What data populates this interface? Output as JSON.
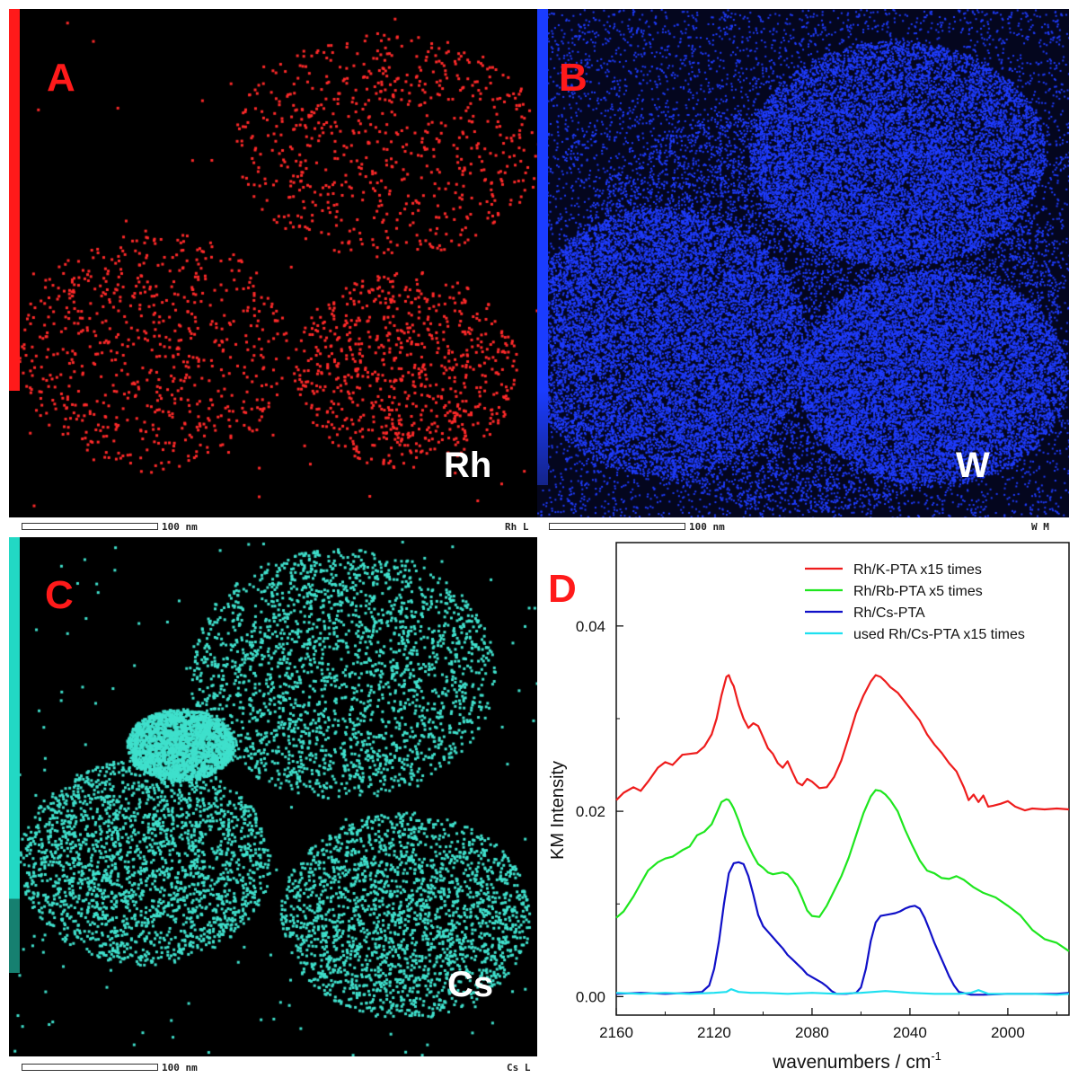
{
  "panels": {
    "a": {
      "label": "A",
      "element": "Rh",
      "scale_text": "100 nm",
      "map_name": "Rh L",
      "color": "#ff2a2a"
    },
    "b": {
      "label": "B",
      "element": "W",
      "scale_text": "100 nm",
      "map_name": "W M",
      "color": "#1f3cff"
    },
    "c": {
      "label": "C",
      "element": "Cs",
      "scale_text": "100 nm",
      "map_name": "Cs L",
      "color": "#3fe0cc"
    },
    "d": {
      "label": "D"
    }
  },
  "colors": {
    "rh_bar": "#ff1a1a",
    "w_bar": "#1a3cff",
    "cs_bar": "#22d8c4",
    "label_red": "#ff1a1a"
  },
  "chart_data": {
    "type": "line",
    "xlabel": "wavenumbers / cm",
    "xlabel_sup": "-1",
    "ylabel": "KM Intensity",
    "xlim": [
      2160,
      1975
    ],
    "ylim": [
      -0.002,
      0.049
    ],
    "xticks": [
      "2160",
      "2120",
      "2080",
      "2040",
      "2000"
    ],
    "yticks": [
      "0.00",
      "0.02",
      "0.04"
    ],
    "legend_position": "top-right",
    "series": [
      {
        "name": "Rh/K-PTA x15 times",
        "color": "#ee1c1c",
        "x": [
          2160,
          2157,
          2153,
          2150,
          2147,
          2143,
          2140,
          2137,
          2133,
          2130,
          2127,
          2124,
          2121,
          2119,
          2117,
          2115,
          2114,
          2113,
          2112,
          2110,
          2108,
          2106,
          2104,
          2102,
          2100,
          2098,
          2096,
          2094,
          2092,
          2090,
          2088,
          2086,
          2084,
          2082,
          2080,
          2077,
          2074,
          2071,
          2068,
          2065,
          2062,
          2059,
          2056,
          2054,
          2052,
          2050,
          2048,
          2045,
          2042,
          2039,
          2036,
          2033,
          2030,
          2027,
          2024,
          2021,
          2018,
          2016,
          2014,
          2012,
          2010,
          2008,
          2006,
          2003,
          2000,
          1997,
          1993,
          1990,
          1985,
          1980,
          1975
        ],
        "y": [
          0.0212,
          0.022,
          0.0226,
          0.0222,
          0.0232,
          0.0247,
          0.0253,
          0.025,
          0.0261,
          0.0262,
          0.0263,
          0.027,
          0.0283,
          0.03,
          0.0325,
          0.0345,
          0.0347,
          0.034,
          0.0335,
          0.0315,
          0.03,
          0.029,
          0.0295,
          0.0292,
          0.028,
          0.0268,
          0.0262,
          0.0252,
          0.0247,
          0.0254,
          0.0242,
          0.0231,
          0.0228,
          0.0235,
          0.0232,
          0.0225,
          0.0226,
          0.0237,
          0.0255,
          0.028,
          0.0306,
          0.0325,
          0.034,
          0.0347,
          0.0345,
          0.034,
          0.0334,
          0.0328,
          0.0318,
          0.0308,
          0.0298,
          0.0283,
          0.0272,
          0.0263,
          0.0252,
          0.0243,
          0.0226,
          0.0212,
          0.0218,
          0.021,
          0.0217,
          0.0205,
          0.0206,
          0.0208,
          0.0211,
          0.0205,
          0.0201,
          0.0203,
          0.0202,
          0.0203,
          0.0202
        ]
      },
      {
        "name": "Rh/Rb-PTA x5 times",
        "color": "#1ee61e",
        "x": [
          2160,
          2157,
          2153,
          2150,
          2147,
          2143,
          2140,
          2137,
          2133,
          2130,
          2127,
          2124,
          2121,
          2119,
          2117,
          2115,
          2114,
          2113,
          2112,
          2110,
          2108,
          2106,
          2104,
          2102,
          2100,
          2098,
          2096,
          2094,
          2092,
          2090,
          2088,
          2086,
          2084,
          2082,
          2080,
          2077,
          2074,
          2071,
          2068,
          2065,
          2062,
          2059,
          2056,
          2054,
          2052,
          2050,
          2048,
          2045,
          2042,
          2039,
          2036,
          2033,
          2030,
          2027,
          2024,
          2021,
          2018,
          2014,
          2010,
          2005,
          2000,
          1995,
          1990,
          1985,
          1980,
          1975
        ],
        "y": [
          0.0085,
          0.0092,
          0.0108,
          0.0122,
          0.0136,
          0.0145,
          0.0149,
          0.0151,
          0.0158,
          0.0162,
          0.0174,
          0.0178,
          0.0186,
          0.0198,
          0.021,
          0.0213,
          0.0212,
          0.0208,
          0.0203,
          0.019,
          0.0174,
          0.0163,
          0.0152,
          0.0143,
          0.0139,
          0.0134,
          0.0132,
          0.0133,
          0.0134,
          0.0132,
          0.0126,
          0.0118,
          0.0106,
          0.0093,
          0.0087,
          0.0086,
          0.0098,
          0.0114,
          0.013,
          0.015,
          0.0174,
          0.0198,
          0.0216,
          0.0223,
          0.0222,
          0.0218,
          0.0212,
          0.02,
          0.018,
          0.0163,
          0.0147,
          0.0136,
          0.0133,
          0.0128,
          0.0127,
          0.013,
          0.0126,
          0.0118,
          0.0112,
          0.0107,
          0.0098,
          0.0088,
          0.0072,
          0.0062,
          0.0058,
          0.0049
        ]
      },
      {
        "name": "Rh/Cs-PTA",
        "color": "#1010c8",
        "x": [
          2160,
          2150,
          2140,
          2130,
          2125,
          2122,
          2120,
          2118,
          2116,
          2114,
          2112,
          2110,
          2108,
          2106,
          2104,
          2102,
          2100,
          2098,
          2096,
          2094,
          2092,
          2090,
          2088,
          2086,
          2084,
          2082,
          2080,
          2078,
          2076,
          2074,
          2072,
          2070,
          2066,
          2062,
          2060,
          2058,
          2056,
          2054,
          2052,
          2050,
          2048,
          2046,
          2044,
          2042,
          2040,
          2038,
          2036,
          2034,
          2032,
          2030,
          2028,
          2026,
          2024,
          2022,
          2020,
          2015,
          2010,
          2000,
          1990,
          1980,
          1975
        ],
        "y": [
          0.0003,
          0.0004,
          0.0003,
          0.0004,
          0.0005,
          0.0012,
          0.003,
          0.006,
          0.01,
          0.0133,
          0.0144,
          0.0145,
          0.0143,
          0.013,
          0.011,
          0.0088,
          0.0076,
          0.007,
          0.0064,
          0.0058,
          0.0052,
          0.0045,
          0.004,
          0.0035,
          0.003,
          0.0024,
          0.0021,
          0.0018,
          0.0015,
          0.0011,
          0.0006,
          0.0003,
          0.0003,
          0.0004,
          0.001,
          0.003,
          0.006,
          0.008,
          0.0087,
          0.0088,
          0.0089,
          0.009,
          0.0092,
          0.0095,
          0.0097,
          0.0098,
          0.0095,
          0.0085,
          0.0072,
          0.0058,
          0.0046,
          0.0034,
          0.0022,
          0.0012,
          0.0005,
          0.0002,
          0.0002,
          0.0003,
          0.0003,
          0.0003,
          0.0004
        ]
      },
      {
        "name": "used Rh/Cs-PTA x15 times",
        "color": "#1ee0f0",
        "x": [
          2160,
          2150,
          2140,
          2130,
          2120,
          2115,
          2113,
          2110,
          2105,
          2100,
          2090,
          2080,
          2070,
          2060,
          2055,
          2050,
          2045,
          2040,
          2030,
          2020,
          2015,
          2012,
          2008,
          2000,
          1990,
          1980,
          1975
        ],
        "y": [
          0.0004,
          0.0003,
          0.0004,
          0.0003,
          0.0004,
          0.0005,
          0.0008,
          0.0005,
          0.0004,
          0.0004,
          0.0003,
          0.0004,
          0.0003,
          0.0004,
          0.0005,
          0.0006,
          0.0005,
          0.0004,
          0.0003,
          0.0003,
          0.0004,
          0.0007,
          0.0003,
          0.0003,
          0.0003,
          0.0002,
          0.0003
        ]
      }
    ]
  }
}
